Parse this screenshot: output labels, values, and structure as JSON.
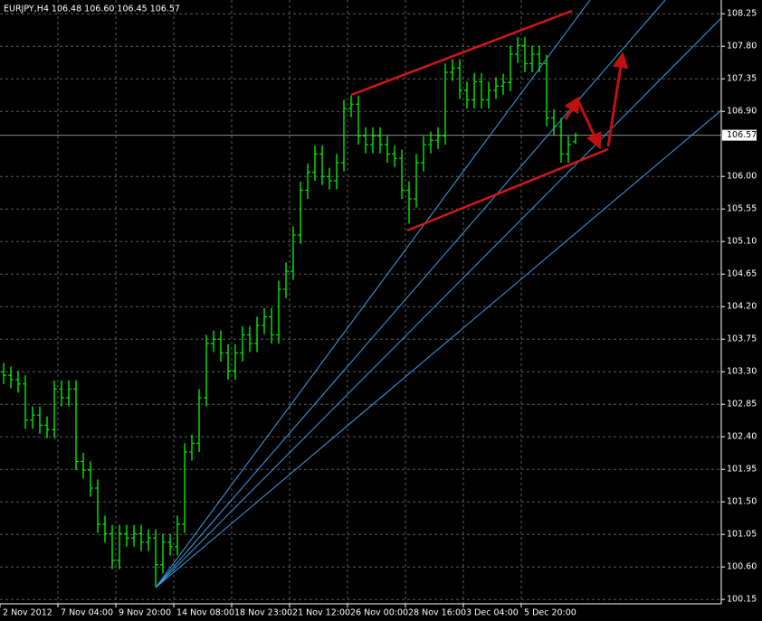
{
  "chart_data": {
    "type": "ohlc",
    "title": "EURJPY,H4  106.48 106.60 106.45 106.57",
    "color": "#00ff00",
    "grid": true,
    "ylim": [
      100.09,
      108.44
    ],
    "yticks": [
      108.25,
      {
        "value": 107.8,
        "label": "107.80"
      },
      107.35,
      {
        "value": 106.9,
        "label": "106.90"
      },
      {
        "value": 106.0,
        "label": "106.00"
      },
      105.55,
      {
        "value": 105.1,
        "label": "105.10"
      },
      104.65,
      {
        "value": 104.2,
        "label": "104.20"
      },
      103.75,
      {
        "value": 103.3,
        "label": "103.30"
      },
      102.85,
      {
        "value": 102.4,
        "label": "102.40"
      },
      101.95,
      {
        "value": 101.5,
        "label": "101.50"
      },
      101.05,
      {
        "value": 100.6,
        "label": "100.60"
      },
      100.15
    ],
    "last_price": 106.57,
    "categories": [
      "2 Nov 2012",
      null,
      null,
      null,
      null,
      null,
      null,
      null,
      "7 Nov 04:00",
      null,
      null,
      null,
      null,
      null,
      null,
      null,
      "9 Nov 20:00",
      null,
      null,
      null,
      null,
      null,
      null,
      null,
      "14 Nov 08:00",
      null,
      null,
      null,
      null,
      null,
      null,
      null,
      "18 Nov 23:00",
      null,
      null,
      null,
      null,
      null,
      null,
      null,
      "21 Nov 12:00",
      null,
      null,
      null,
      null,
      null,
      null,
      null,
      "26 Nov 00:00",
      null,
      null,
      null,
      null,
      null,
      null,
      null,
      "28 Nov 16:00",
      null,
      null,
      null,
      null,
      null,
      null,
      null,
      "3 Dec 04:00",
      null,
      null,
      null,
      null,
      null,
      null,
      null,
      "5 Dec 20:00",
      null,
      null,
      null,
      null,
      null,
      null,
      null
    ],
    "open": [
      103.3,
      103.25,
      103.19,
      103.13,
      102.63,
      102.7,
      102.56,
      102.5,
      103.06,
      102.94,
      103.06,
      102.06,
      101.94,
      101.69,
      101.19,
      101.06,
      100.69,
      101.06,
      101.0,
      101.06,
      100.94,
      101.0,
      100.63,
      100.94,
      100.88,
      101.19,
      102.19,
      102.31,
      102.94,
      103.69,
      103.75,
      103.56,
      103.31,
      103.56,
      103.81,
      103.69,
      103.94,
      104.06,
      103.81,
      104.44,
      104.69,
      105.19,
      105.81,
      106.06,
      106.31,
      106.0,
      105.94,
      106.19,
      106.94,
      107.0,
      106.56,
      106.44,
      106.56,
      106.44,
      106.31,
      106.25,
      105.81,
      105.69,
      106.19,
      106.44,
      106.5,
      106.56,
      107.44,
      107.5,
      107.19,
      107.06,
      107.31,
      107.06,
      107.19,
      107.25,
      107.3,
      107.69,
      107.81,
      107.56,
      107.69,
      107.56,
      106.81,
      106.69,
      106.31,
      106.48
    ],
    "high": [
      103.42,
      103.37,
      103.31,
      103.25,
      102.82,
      102.82,
      102.68,
      103.18,
      103.18,
      103.18,
      103.18,
      102.18,
      102.06,
      101.81,
      101.31,
      101.18,
      101.18,
      101.18,
      101.18,
      101.18,
      101.12,
      101.12,
      101.06,
      101.06,
      101.31,
      102.31,
      102.43,
      103.06,
      103.81,
      103.87,
      103.87,
      103.68,
      103.68,
      103.93,
      103.93,
      104.06,
      104.18,
      104.18,
      104.56,
      104.81,
      105.31,
      105.93,
      106.18,
      106.43,
      106.43,
      106.12,
      106.31,
      107.06,
      107.12,
      107.12,
      106.68,
      106.68,
      106.68,
      106.56,
      106.43,
      106.37,
      105.93,
      106.31,
      106.56,
      106.62,
      106.68,
      107.56,
      107.62,
      107.62,
      107.31,
      107.43,
      107.43,
      107.31,
      107.37,
      107.42,
      107.81,
      107.93,
      107.93,
      107.81,
      107.81,
      107.68,
      106.93,
      106.81,
      106.56,
      106.6
    ],
    "low": [
      103.13,
      103.07,
      103.01,
      102.51,
      102.51,
      102.44,
      102.38,
      102.38,
      102.82,
      102.82,
      101.94,
      101.82,
      101.57,
      101.07,
      100.94,
      100.57,
      100.57,
      100.88,
      100.88,
      100.82,
      100.82,
      100.33,
      100.51,
      100.76,
      100.76,
      101.07,
      102.07,
      102.19,
      102.82,
      103.57,
      103.44,
      103.19,
      103.19,
      103.44,
      103.57,
      103.57,
      103.82,
      103.69,
      103.69,
      104.32,
      104.57,
      105.07,
      105.69,
      105.94,
      105.88,
      105.82,
      105.82,
      106.07,
      106.82,
      106.44,
      106.32,
      106.32,
      106.32,
      106.19,
      106.13,
      105.69,
      105.35,
      105.57,
      106.07,
      106.32,
      106.38,
      106.44,
      107.32,
      107.07,
      106.94,
      106.94,
      106.94,
      106.94,
      107.07,
      107.13,
      107.18,
      107.57,
      107.44,
      107.44,
      107.44,
      106.69,
      106.57,
      106.19,
      106.19,
      106.45
    ],
    "close": [
      103.25,
      103.19,
      103.13,
      102.63,
      102.7,
      102.56,
      102.5,
      103.06,
      102.94,
      103.06,
      102.06,
      101.94,
      101.69,
      101.19,
      101.06,
      100.69,
      101.06,
      101.0,
      101.06,
      100.94,
      101.0,
      100.63,
      100.94,
      100.88,
      101.19,
      102.19,
      102.31,
      102.94,
      103.69,
      103.75,
      103.56,
      103.31,
      103.56,
      103.81,
      103.69,
      103.94,
      104.06,
      103.81,
      104.44,
      104.69,
      105.19,
      105.81,
      106.06,
      106.31,
      106.0,
      105.94,
      106.19,
      106.94,
      107.0,
      106.56,
      106.44,
      106.56,
      106.44,
      106.31,
      106.25,
      105.81,
      105.69,
      106.19,
      106.44,
      106.5,
      106.56,
      107.44,
      107.5,
      107.19,
      107.06,
      107.31,
      107.06,
      107.19,
      107.25,
      107.3,
      107.69,
      107.81,
      107.56,
      107.69,
      107.56,
      106.81,
      106.69,
      106.31,
      106.44,
      106.57
    ]
  }
}
